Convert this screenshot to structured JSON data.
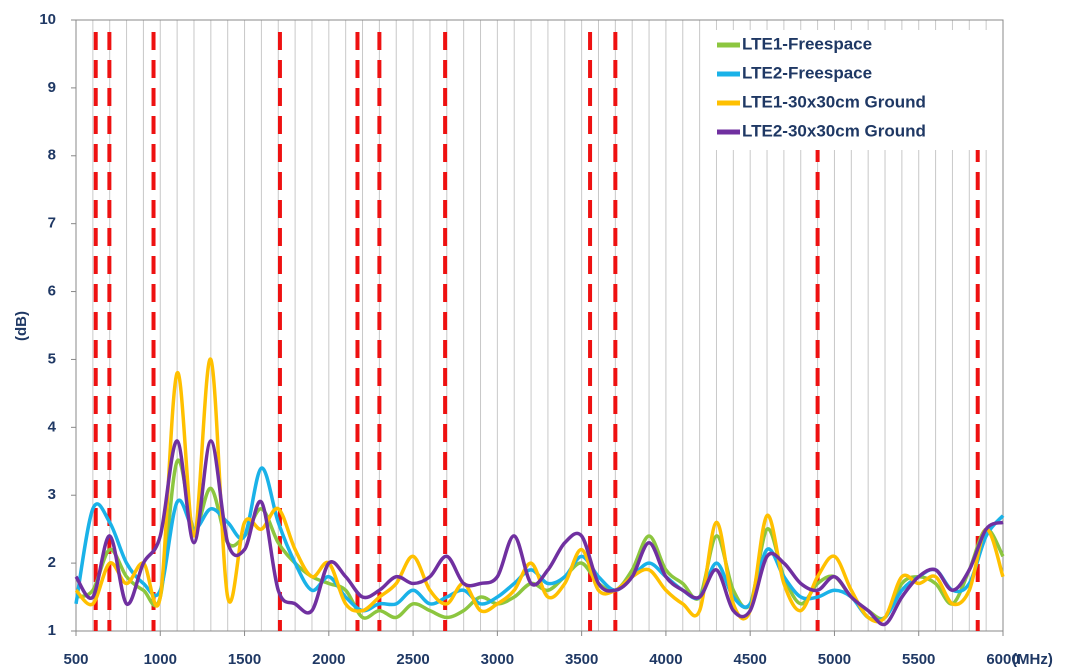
{
  "chart_data": {
    "type": "line",
    "xlabel": "(MHz)",
    "ylabel": "(dB)",
    "xlim": [
      500,
      6000
    ],
    "ylim": [
      1,
      10
    ],
    "xticks": [
      500,
      1000,
      1500,
      2000,
      2500,
      3000,
      3500,
      4000,
      4500,
      5000,
      5500,
      6000
    ],
    "yticks": [
      1,
      2,
      3,
      4,
      5,
      6,
      7,
      8,
      9,
      10
    ],
    "xminorticks": [
      500,
      600,
      700,
      800,
      900,
      1000,
      1100,
      1200,
      1300,
      1400,
      1500,
      1600,
      1700,
      1800,
      1900,
      2000,
      2100,
      2200,
      2300,
      2400,
      2500,
      2600,
      2700,
      2800,
      2900,
      3000,
      3100,
      3200,
      3300,
      3400,
      3500,
      3600,
      3700,
      3800,
      3900,
      4000,
      4100,
      4200,
      4300,
      4400,
      4500,
      4600,
      4700,
      4800,
      4900,
      5000,
      5100,
      5200,
      5300,
      5400,
      5500,
      5600,
      5700,
      5800,
      5900,
      6000
    ],
    "band_edges": [
      617,
      698,
      960,
      1710,
      2170,
      2300,
      2690,
      3550,
      3700,
      4900,
      5850
    ],
    "band_edge_color": "#ee1111",
    "legend": "upper right",
    "x": [
      500,
      600,
      700,
      800,
      900,
      1000,
      1100,
      1200,
      1300,
      1400,
      1500,
      1600,
      1700,
      1800,
      1900,
      2000,
      2100,
      2200,
      2300,
      2400,
      2500,
      2600,
      2700,
      2800,
      2900,
      3000,
      3100,
      3200,
      3300,
      3400,
      3500,
      3600,
      3700,
      3800,
      3900,
      4000,
      4100,
      4200,
      4300,
      4400,
      4500,
      4600,
      4700,
      4800,
      4900,
      5000,
      5100,
      5200,
      5300,
      5400,
      5500,
      5600,
      5700,
      5800,
      5900,
      6000
    ],
    "series": [
      {
        "name": "LTE1-Freespace",
        "color": "#8cc63f",
        "values": [
          1.5,
          1.6,
          2.2,
          1.8,
          1.6,
          1.5,
          3.5,
          2.5,
          3.1,
          2.3,
          2.4,
          2.8,
          2.3,
          2.0,
          1.8,
          1.7,
          1.6,
          1.2,
          1.3,
          1.2,
          1.4,
          1.3,
          1.2,
          1.3,
          1.5,
          1.4,
          1.5,
          1.7,
          1.6,
          1.8,
          2.0,
          1.7,
          1.6,
          1.9,
          2.4,
          1.9,
          1.7,
          1.5,
          2.4,
          1.6,
          1.4,
          2.5,
          1.8,
          1.4,
          1.7,
          1.8,
          1.5,
          1.3,
          1.2,
          1.7,
          1.8,
          1.7,
          1.4,
          1.9,
          2.5,
          2.1
        ]
      },
      {
        "name": "LTE2-Freespace",
        "color": "#1ab2e8",
        "values": [
          1.4,
          2.8,
          2.6,
          2.0,
          1.7,
          1.6,
          2.9,
          2.5,
          2.8,
          2.6,
          2.4,
          3.4,
          2.6,
          2.0,
          1.6,
          1.8,
          1.5,
          1.3,
          1.4,
          1.4,
          1.6,
          1.4,
          1.5,
          1.6,
          1.4,
          1.5,
          1.7,
          1.9,
          1.7,
          1.8,
          2.1,
          1.8,
          1.6,
          1.8,
          2.0,
          1.8,
          1.6,
          1.5,
          2.0,
          1.5,
          1.4,
          2.2,
          1.8,
          1.5,
          1.5,
          1.6,
          1.5,
          1.2,
          1.2,
          1.6,
          1.8,
          1.9,
          1.6,
          1.7,
          2.4,
          2.7
        ]
      },
      {
        "name": "LTE1-30x30cm Ground",
        "color": "#ffc000",
        "values": [
          1.6,
          1.4,
          2.0,
          1.7,
          2.0,
          1.5,
          4.8,
          2.4,
          5.0,
          1.5,
          2.6,
          2.5,
          2.8,
          2.2,
          1.8,
          2.0,
          1.4,
          1.3,
          1.5,
          1.7,
          2.1,
          1.6,
          1.4,
          1.7,
          1.3,
          1.4,
          1.6,
          2.0,
          1.5,
          1.7,
          2.2,
          1.6,
          1.6,
          1.8,
          1.9,
          1.6,
          1.4,
          1.3,
          2.6,
          1.4,
          1.3,
          2.7,
          1.7,
          1.3,
          1.8,
          2.1,
          1.6,
          1.2,
          1.2,
          1.8,
          1.7,
          1.8,
          1.4,
          1.6,
          2.5,
          1.8
        ]
      },
      {
        "name": "LTE2-30x30cm Ground",
        "color": "#7030a0",
        "values": [
          1.8,
          1.5,
          2.4,
          1.4,
          2.0,
          2.4,
          3.8,
          2.3,
          3.8,
          2.3,
          2.2,
          2.9,
          1.6,
          1.4,
          1.3,
          2.0,
          1.8,
          1.5,
          1.6,
          1.8,
          1.7,
          1.8,
          2.1,
          1.7,
          1.7,
          1.8,
          2.4,
          1.7,
          1.9,
          2.3,
          2.4,
          1.7,
          1.6,
          1.8,
          2.3,
          1.8,
          1.6,
          1.5,
          1.9,
          1.3,
          1.3,
          2.1,
          2.0,
          1.7,
          1.6,
          1.8,
          1.5,
          1.3,
          1.1,
          1.5,
          1.8,
          1.9,
          1.6,
          1.9,
          2.5,
          2.6
        ]
      }
    ]
  }
}
